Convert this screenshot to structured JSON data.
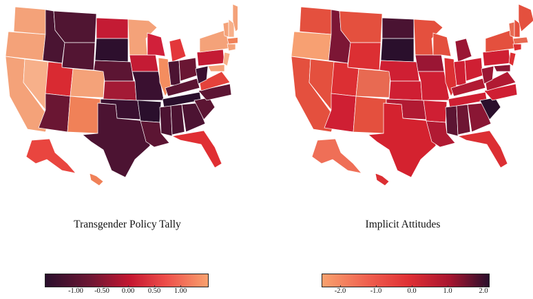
{
  "left_map": {
    "title": "Transgender Policy Tally",
    "legend_ticks": [
      "-1.00",
      "-0.50",
      "0.00",
      "0.50",
      "1.00"
    ],
    "colors": {
      "darkest": "#2a0f2c",
      "dark": "#6e1633",
      "mid": "#c41630",
      "light": "#ee4e4a",
      "lightest": "#f9a16e"
    }
  },
  "right_map": {
    "title": "Implicit Attitudes",
    "legend_ticks": [
      "-2.0",
      "-1.0",
      "0.0",
      "1.0",
      "2.0"
    ],
    "colors": {
      "lightest": "#f9a16e",
      "light": "#ef5e4e",
      "mid": "#df2f34",
      "dark": "#a9152f",
      "darkest": "#2a0f2c"
    }
  }
}
